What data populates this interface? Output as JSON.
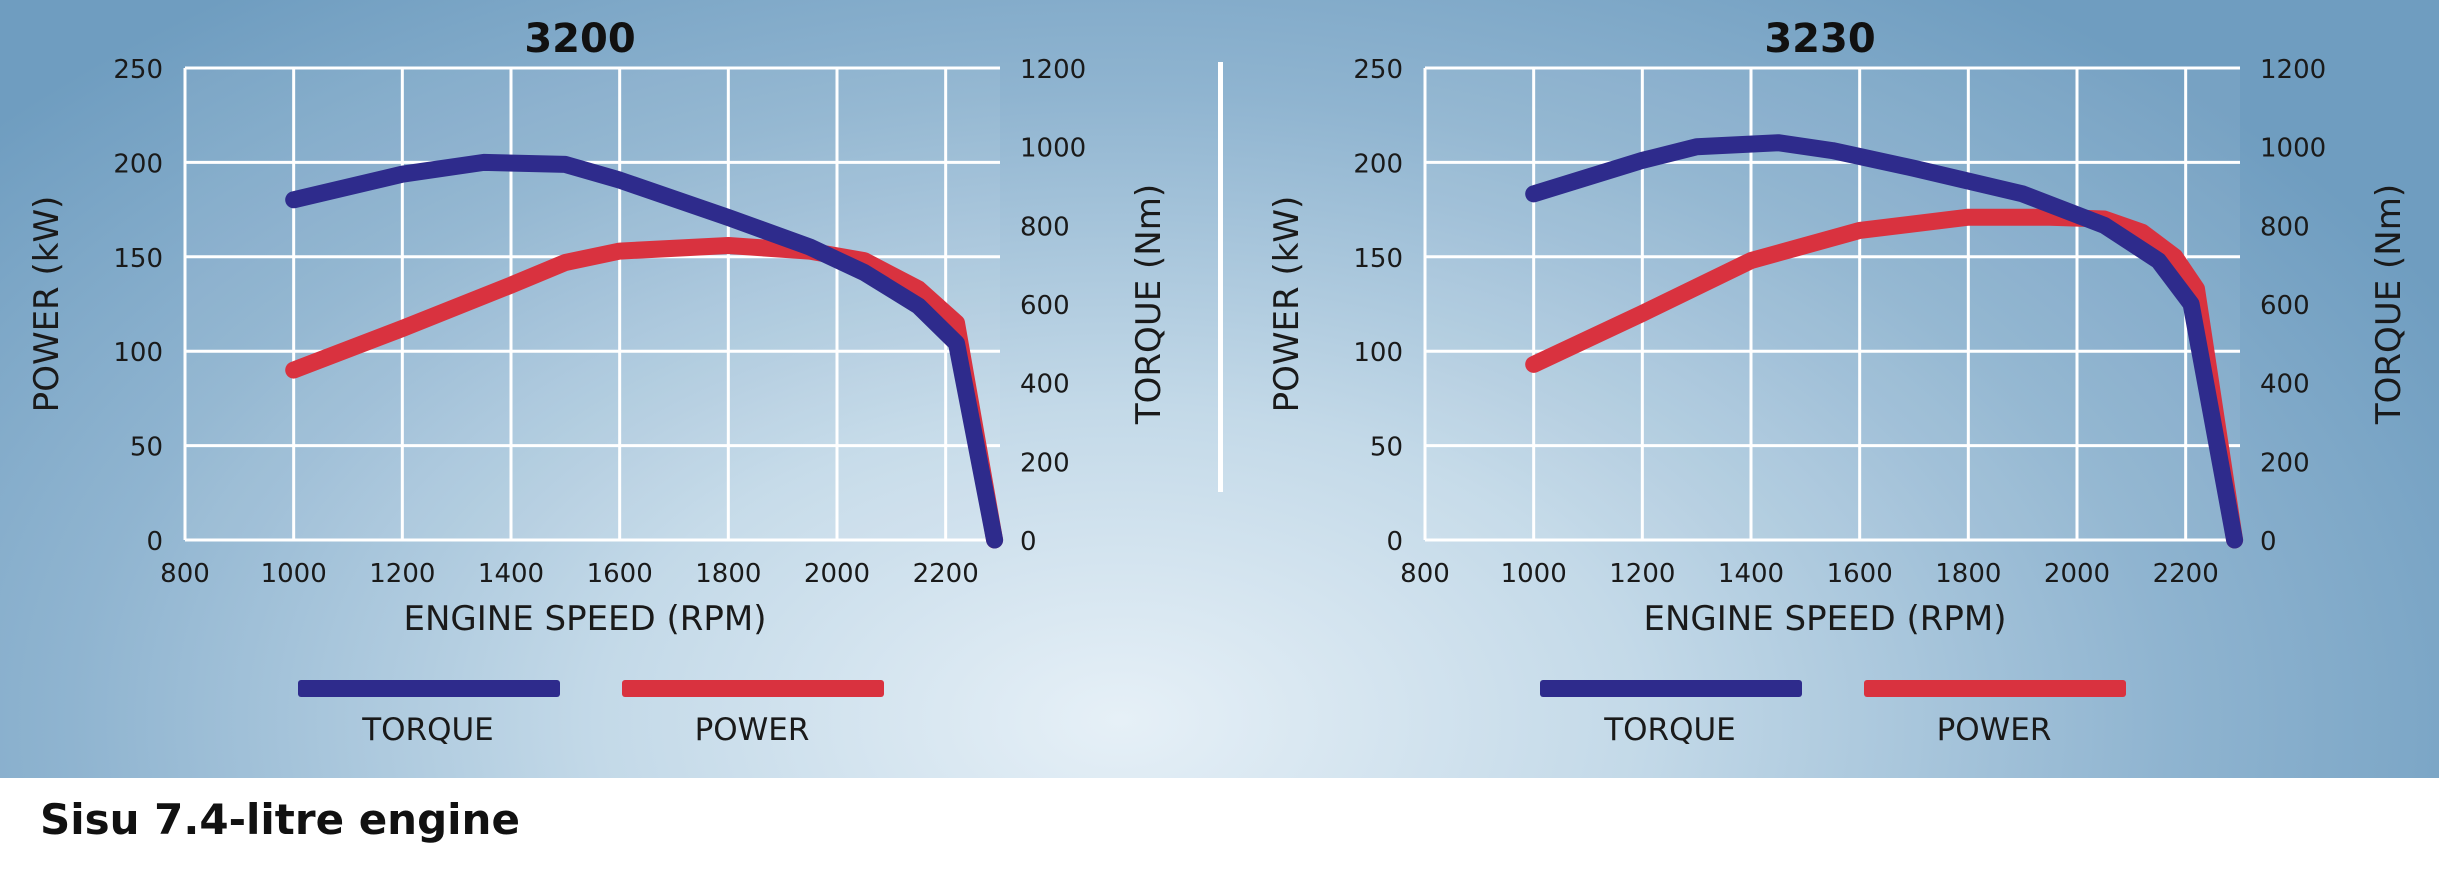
{
  "caption": "Sisu 7.4-litre engine",
  "colors": {
    "torque": "#2e2b8c",
    "power": "#d9323f"
  },
  "legend": {
    "torque": "TORQUE",
    "power": "POWER"
  },
  "chart_data": [
    {
      "type": "line",
      "title": "3200",
      "xlabel": "ENGINE SPEED (RPM)",
      "ylabel_left": "POWER (kW)",
      "ylabel_right": "TORQUE (Nm)",
      "xlim": [
        800,
        2300
      ],
      "ylim_left": [
        0,
        250
      ],
      "ylim_right": [
        0,
        1200
      ],
      "x_ticks": [
        "800",
        "1000",
        "1200",
        "1400",
        "1600",
        "1800",
        "2000",
        "2200"
      ],
      "y_ticks_left": [
        "0",
        "50",
        "100",
        "150",
        "200",
        "250"
      ],
      "y_ticks_right": [
        "0",
        "200",
        "400",
        "600",
        "800",
        "1000",
        "1200"
      ],
      "grid": true,
      "series": [
        {
          "name": "TORQUE",
          "axis": "right",
          "points": [
            [
              1000,
              865
            ],
            [
              1200,
              930
            ],
            [
              1350,
              960
            ],
            [
              1500,
              955
            ],
            [
              1600,
              915
            ],
            [
              1800,
              820
            ],
            [
              1950,
              745
            ],
            [
              2050,
              680
            ],
            [
              2150,
              595
            ],
            [
              2220,
              500
            ],
            [
              2290,
              0
            ]
          ]
        },
        {
          "name": "POWER",
          "axis": "left",
          "points": [
            [
              1000,
              90
            ],
            [
              1200,
              112
            ],
            [
              1400,
              135
            ],
            [
              1500,
              147
            ],
            [
              1600,
              153
            ],
            [
              1800,
              156
            ],
            [
              1950,
              153
            ],
            [
              2050,
              148
            ],
            [
              2150,
              133
            ],
            [
              2220,
              115
            ],
            [
              2290,
              0
            ]
          ]
        }
      ]
    },
    {
      "type": "line",
      "title": "3230",
      "xlabel": "ENGINE SPEED (RPM)",
      "ylabel_left": "POWER (kW)",
      "ylabel_right": "TORQUE (Nm)",
      "xlim": [
        800,
        2300
      ],
      "ylim_left": [
        0,
        250
      ],
      "ylim_right": [
        0,
        1200
      ],
      "x_ticks": [
        "800",
        "1000",
        "1200",
        "1400",
        "1600",
        "1800",
        "2000",
        "2200"
      ],
      "y_ticks_left": [
        "0",
        "50",
        "100",
        "150",
        "200",
        "250"
      ],
      "y_ticks_right": [
        "0",
        "200",
        "400",
        "600",
        "800",
        "1000",
        "1200"
      ],
      "grid": true,
      "series": [
        {
          "name": "TORQUE",
          "axis": "right",
          "points": [
            [
              1000,
              880
            ],
            [
              1200,
              965
            ],
            [
              1300,
              1000
            ],
            [
              1450,
              1010
            ],
            [
              1550,
              990
            ],
            [
              1700,
              945
            ],
            [
              1900,
              880
            ],
            [
              2050,
              800
            ],
            [
              2150,
              710
            ],
            [
              2210,
              600
            ],
            [
              2290,
              0
            ]
          ]
        },
        {
          "name": "POWER",
          "axis": "left",
          "points": [
            [
              1000,
              93
            ],
            [
              1200,
              120
            ],
            [
              1400,
              148
            ],
            [
              1600,
              164
            ],
            [
              1800,
              171
            ],
            [
              1950,
              171
            ],
            [
              2050,
              170
            ],
            [
              2120,
              163
            ],
            [
              2180,
              150
            ],
            [
              2220,
              133
            ],
            [
              2290,
              0
            ]
          ]
        }
      ]
    }
  ]
}
